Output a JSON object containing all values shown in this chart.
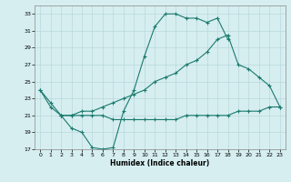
{
  "title": "",
  "xlabel": "Humidex (Indice chaleur)",
  "background_color": "#d6eef0",
  "grid_color": "#b8d8dc",
  "line_color": "#1a7a6e",
  "xlim": [
    -0.5,
    23.5
  ],
  "ylim": [
    17,
    34
  ],
  "xticks": [
    0,
    1,
    2,
    3,
    4,
    5,
    6,
    7,
    8,
    9,
    10,
    11,
    12,
    13,
    14,
    15,
    16,
    17,
    18,
    19,
    20,
    21,
    22,
    23
  ],
  "yticks": [
    17,
    19,
    21,
    23,
    25,
    27,
    29,
    31,
    33
  ],
  "line1_x": [
    0,
    1,
    2,
    3,
    4,
    5,
    6,
    7,
    8,
    9,
    10,
    11,
    12,
    13,
    14,
    15,
    16,
    17,
    18
  ],
  "line1_y": [
    24.0,
    22.5,
    21.0,
    19.5,
    19.0,
    17.2,
    17.0,
    17.2,
    21.5,
    24.0,
    28.0,
    31.5,
    33.0,
    33.0,
    32.5,
    32.5,
    32.0,
    32.5,
    30.0
  ],
  "line2_x": [
    0,
    1,
    2,
    3,
    4,
    5,
    6,
    7,
    8,
    9,
    10,
    11,
    12,
    13,
    14,
    15,
    16,
    17,
    18,
    19,
    20,
    21,
    22,
    23
  ],
  "line2_y": [
    24.0,
    22.0,
    21.0,
    21.0,
    21.5,
    21.5,
    22.0,
    22.5,
    23.0,
    23.5,
    24.0,
    25.0,
    25.5,
    26.0,
    27.0,
    27.5,
    28.5,
    30.0,
    30.5,
    27.0,
    26.5,
    25.5,
    24.5,
    22.0
  ],
  "line3_x": [
    2,
    3,
    4,
    5,
    6,
    7,
    8,
    9,
    10,
    11,
    12,
    13,
    14,
    15,
    16,
    17,
    18,
    19,
    20,
    21,
    22,
    23
  ],
  "line3_y": [
    21.0,
    21.0,
    21.0,
    21.0,
    21.0,
    20.5,
    20.5,
    20.5,
    20.5,
    20.5,
    20.5,
    20.5,
    21.0,
    21.0,
    21.0,
    21.0,
    21.0,
    21.5,
    21.5,
    21.5,
    22.0,
    22.0
  ]
}
